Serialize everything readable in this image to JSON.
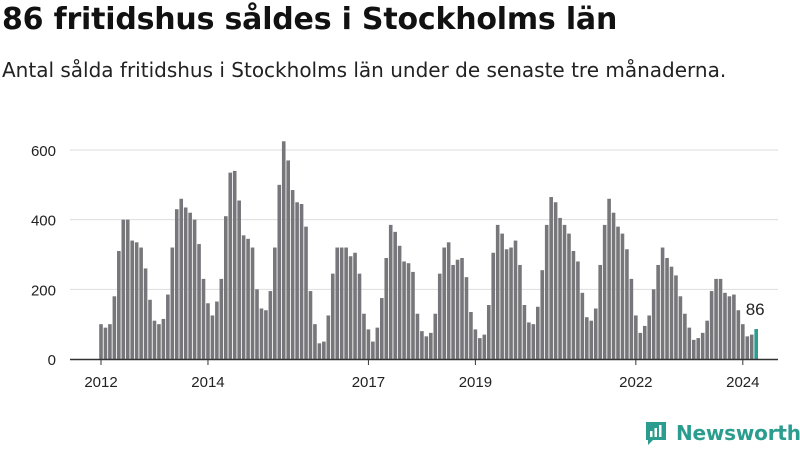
{
  "title": "86 fritidshus såldes i Stockholms län",
  "subtitle": "Antal sålda fritidshus i Stockholms län under de senaste tre månaderna.",
  "brand": {
    "name": "Newsworthy"
  },
  "colors": {
    "bar": "#77767a",
    "highlight": "#2a9d8f",
    "grid": "#dddddd",
    "axis": "#333333"
  },
  "chart_data": {
    "type": "bar",
    "title": "86 fritidshus såldes i Stockholms län",
    "xlabel": "",
    "ylabel": "",
    "ylim": [
      0,
      650
    ],
    "yticks": [
      0,
      200,
      400,
      600
    ],
    "xticks": [
      {
        "index": 0,
        "label": "2012"
      },
      {
        "index": 24,
        "label": "2014"
      },
      {
        "index": 60,
        "label": "2017"
      },
      {
        "index": 84,
        "label": "2019"
      },
      {
        "index": 120,
        "label": "2022"
      },
      {
        "index": 144,
        "label": "2024"
      }
    ],
    "grid": true,
    "highlight_label": "86",
    "values": [
      100,
      90,
      100,
      180,
      310,
      400,
      400,
      340,
      335,
      320,
      260,
      170,
      110,
      100,
      115,
      185,
      320,
      430,
      460,
      435,
      420,
      400,
      330,
      230,
      160,
      125,
      165,
      230,
      410,
      535,
      540,
      455,
      355,
      345,
      320,
      200,
      145,
      140,
      195,
      320,
      500,
      625,
      570,
      485,
      450,
      445,
      380,
      195,
      100,
      45,
      50,
      125,
      245,
      320,
      320,
      320,
      295,
      305,
      245,
      130,
      85,
      50,
      90,
      175,
      290,
      385,
      365,
      325,
      280,
      275,
      250,
      130,
      80,
      65,
      75,
      130,
      245,
      320,
      335,
      270,
      285,
      290,
      235,
      135,
      85,
      60,
      70,
      155,
      305,
      385,
      360,
      315,
      320,
      340,
      270,
      155,
      105,
      100,
      150,
      255,
      385,
      465,
      450,
      405,
      385,
      360,
      310,
      280,
      190,
      120,
      110,
      145,
      270,
      385,
      460,
      420,
      380,
      360,
      315,
      230,
      125,
      75,
      95,
      125,
      200,
      270,
      320,
      290,
      265,
      240,
      180,
      130,
      90,
      55,
      60,
      75,
      110,
      195,
      230,
      230,
      190,
      180,
      185,
      140,
      100,
      65,
      70,
      86
    ]
  }
}
